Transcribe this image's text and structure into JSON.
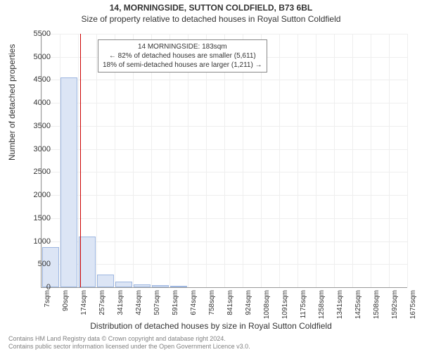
{
  "title": "14, MORNINGSIDE, SUTTON COLDFIELD, B73 6BL",
  "subtitle": "Size of property relative to detached houses in Royal Sutton Coldfield",
  "ylabel": "Number of detached properties",
  "xlabel": "Distribution of detached houses by size in Royal Sutton Coldfield",
  "chart": {
    "type": "histogram",
    "ylim": [
      0,
      5500
    ],
    "ytick_step": 500,
    "yticks": [
      0,
      500,
      1000,
      1500,
      2000,
      2500,
      3000,
      3500,
      4000,
      4500,
      5000,
      5500
    ],
    "xticks": [
      "7sqm",
      "90sqm",
      "174sqm",
      "257sqm",
      "341sqm",
      "424sqm",
      "507sqm",
      "591sqm",
      "674sqm",
      "758sqm",
      "841sqm",
      "924sqm",
      "1008sqm",
      "1091sqm",
      "1175sqm",
      "1258sqm",
      "1341sqm",
      "1425sqm",
      "1508sqm",
      "1592sqm",
      "1675sqm"
    ],
    "values": [
      870,
      4550,
      1100,
      270,
      120,
      60,
      40,
      30,
      0,
      0,
      0,
      0,
      0,
      0,
      0,
      0,
      0,
      0,
      0,
      0
    ],
    "bar_fill": "#dce5f5",
    "bar_stroke": "#9db6e0",
    "grid_color": "#eeeeee",
    "axis_color": "#999999",
    "marker_color": "#cc0000",
    "marker_at_sqm": 183,
    "x_min_sqm": 7,
    "x_max_sqm": 1675,
    "background_color": "#ffffff",
    "tick_fontsize": 11,
    "label_fontsize": 12
  },
  "annotation": {
    "line1": "14 MORNINGSIDE: 183sqm",
    "line2": "← 82% of detached houses are smaller (5,611)",
    "line3": "18% of semi-detached houses are larger (1,211) →"
  },
  "footer": {
    "line1": "Contains HM Land Registry data © Crown copyright and database right 2024.",
    "line2": "Contains public sector information licensed under the Open Government Licence v3.0."
  }
}
